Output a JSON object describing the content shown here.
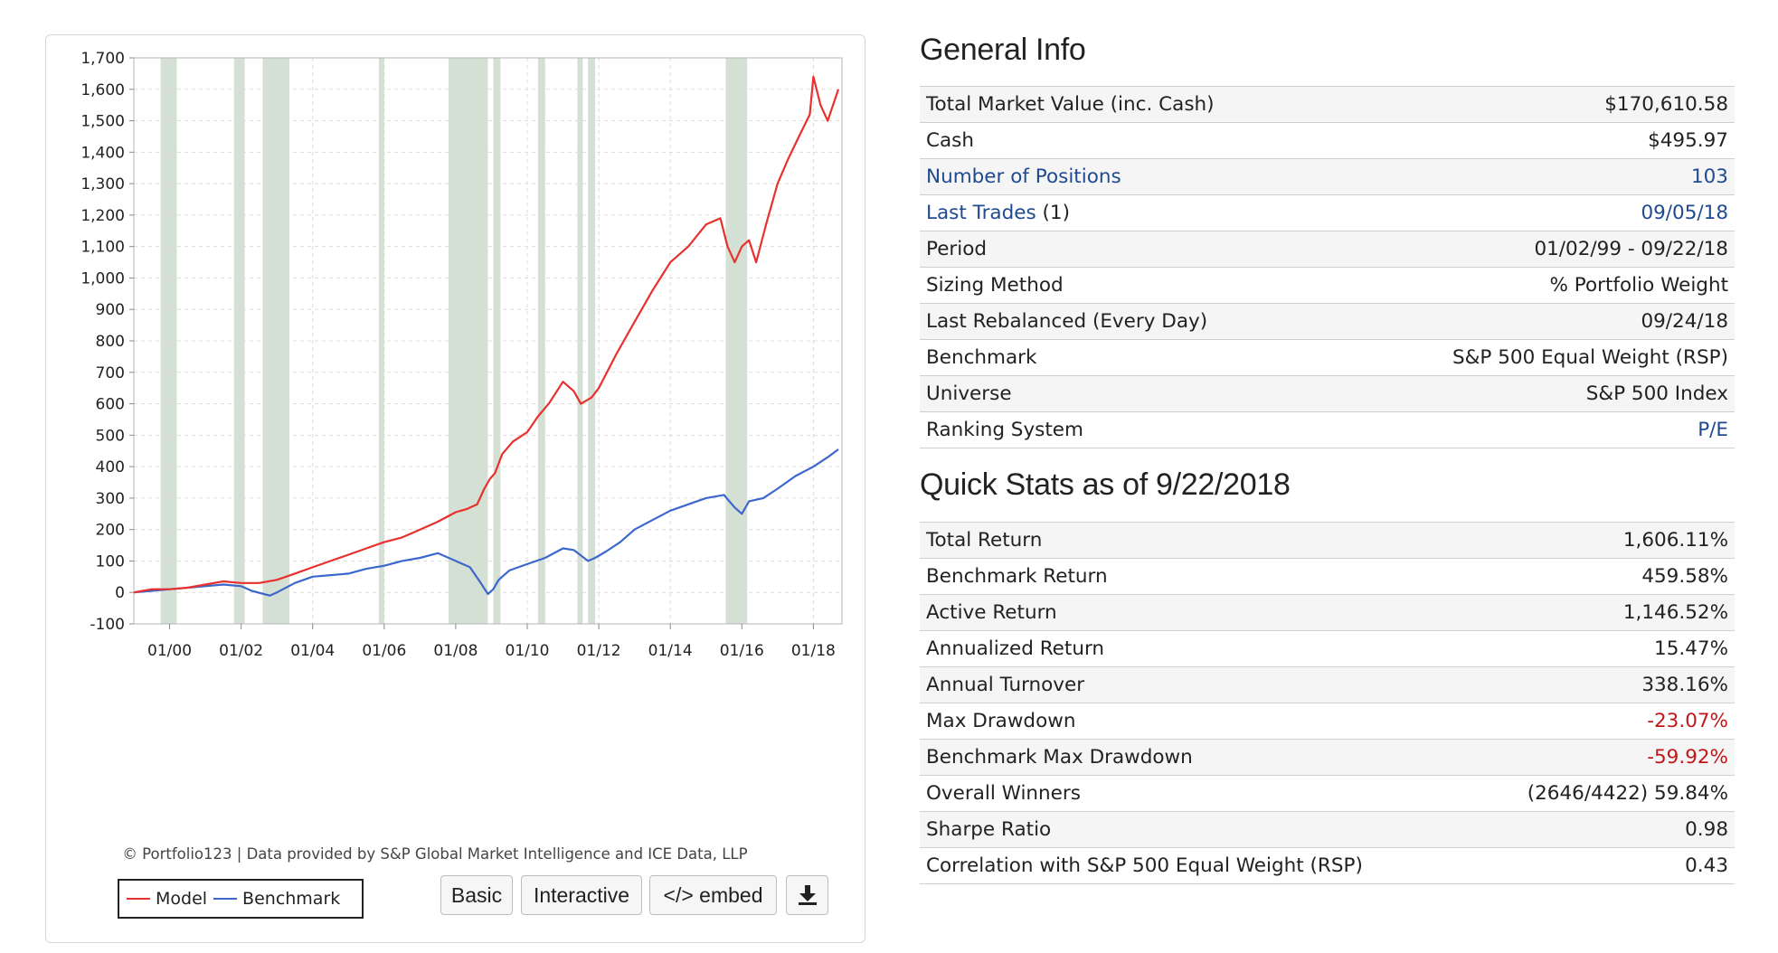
{
  "chart": {
    "credit": "© Portfolio123 | Data provided by S&P Global Market Intelligence and ICE Data, LLP",
    "buttons": {
      "basic": "Basic",
      "interactive": "Interactive",
      "embed": "</> embed"
    },
    "colors": {
      "model": "#e8312f",
      "benchmark": "#3c67cc",
      "recession": "#d4e0d4",
      "grid": "#dcdcdc"
    },
    "icons": {
      "download": "download-icon"
    }
  },
  "chart_data": {
    "type": "line",
    "title": "",
    "xlabel": "",
    "ylabel": "",
    "ylim": [
      -100,
      1700
    ],
    "xlim": [
      1999.0,
      2018.8
    ],
    "grid": true,
    "legend_position": "bottom-left",
    "yticks": [
      -100,
      0,
      100,
      200,
      300,
      400,
      500,
      600,
      700,
      800,
      900,
      1000,
      1100,
      1200,
      1300,
      1400,
      1500,
      1600,
      1700
    ],
    "ytick_labels": [
      "-100",
      "0",
      "100",
      "200",
      "300",
      "400",
      "500",
      "600",
      "700",
      "800",
      "900",
      "1,000",
      "1,100",
      "1,200",
      "1,300",
      "1,400",
      "1,500",
      "1,600",
      "1,700"
    ],
    "xticks": [
      2000,
      2002,
      2004,
      2006,
      2008,
      2010,
      2012,
      2014,
      2016,
      2018
    ],
    "xtick_labels": [
      "01/00",
      "01/02",
      "01/04",
      "01/06",
      "01/08",
      "01/10",
      "01/12",
      "01/14",
      "01/16",
      "01/18"
    ],
    "shaded_periods": [
      [
        1999.75,
        2000.2
      ],
      [
        2001.8,
        2002.1
      ],
      [
        2002.6,
        2003.35
      ],
      [
        2005.85,
        2006.0
      ],
      [
        2007.8,
        2008.9
      ],
      [
        2009.05,
        2009.25
      ],
      [
        2010.3,
        2010.5
      ],
      [
        2011.4,
        2011.55
      ],
      [
        2011.7,
        2011.9
      ],
      [
        2015.55,
        2016.15
      ]
    ],
    "series": [
      {
        "name": "Model",
        "x": [
          1999.0,
          1999.5,
          2000.0,
          2000.5,
          2001.0,
          2001.5,
          2002.0,
          2002.5,
          2003.0,
          2003.5,
          2004.0,
          2004.5,
          2005.0,
          2005.5,
          2006.0,
          2006.5,
          2007.0,
          2007.5,
          2008.0,
          2008.3,
          2008.6,
          2008.8,
          2008.95,
          2009.1,
          2009.3,
          2009.6,
          2010.0,
          2010.3,
          2010.6,
          2011.0,
          2011.3,
          2011.5,
          2011.8,
          2012.0,
          2012.5,
          2013.0,
          2013.5,
          2014.0,
          2014.5,
          2015.0,
          2015.4,
          2015.6,
          2015.8,
          2016.0,
          2016.2,
          2016.4,
          2016.7,
          2017.0,
          2017.3,
          2017.6,
          2017.9,
          2018.0,
          2018.2,
          2018.4,
          2018.7
        ],
        "values": [
          0,
          10,
          10,
          15,
          25,
          35,
          30,
          30,
          40,
          60,
          80,
          100,
          120,
          140,
          160,
          175,
          200,
          225,
          255,
          265,
          280,
          330,
          360,
          380,
          440,
          480,
          510,
          560,
          600,
          670,
          640,
          600,
          620,
          650,
          760,
          860,
          960,
          1050,
          1100,
          1170,
          1190,
          1100,
          1050,
          1100,
          1120,
          1050,
          1180,
          1300,
          1380,
          1450,
          1520,
          1640,
          1550,
          1500,
          1600
        ]
      },
      {
        "name": "Benchmark",
        "x": [
          1999.0,
          1999.5,
          2000.0,
          2000.5,
          2001.0,
          2001.5,
          2002.0,
          2002.3,
          2002.8,
          2003.0,
          2003.5,
          2004.0,
          2004.5,
          2005.0,
          2005.5,
          2006.0,
          2006.5,
          2007.0,
          2007.5,
          2008.0,
          2008.4,
          2008.7,
          2008.9,
          2009.05,
          2009.2,
          2009.5,
          2010.0,
          2010.5,
          2011.0,
          2011.3,
          2011.7,
          2011.9,
          2012.2,
          2012.6,
          2013.0,
          2013.5,
          2014.0,
          2014.5,
          2015.0,
          2015.5,
          2015.8,
          2016.0,
          2016.2,
          2016.6,
          2017.0,
          2017.5,
          2018.0,
          2018.4,
          2018.7
        ],
        "values": [
          0,
          5,
          10,
          15,
          20,
          25,
          20,
          5,
          -10,
          0,
          30,
          50,
          55,
          60,
          75,
          85,
          100,
          110,
          125,
          100,
          80,
          30,
          -5,
          10,
          40,
          70,
          90,
          110,
          140,
          135,
          100,
          110,
          130,
          160,
          200,
          230,
          260,
          280,
          300,
          310,
          270,
          250,
          290,
          300,
          330,
          370,
          400,
          430,
          455
        ]
      }
    ]
  },
  "general_info": {
    "title": "General Info",
    "rows": [
      {
        "label": "Total Market Value (inc. Cash)",
        "value": "$170,610.58"
      },
      {
        "label": "Cash",
        "value": "$495.97"
      },
      {
        "label": "Number of Positions",
        "value": "103"
      },
      {
        "label": "Last Trades",
        "label_suffix": " (1)",
        "value": "09/05/18"
      },
      {
        "label": "Period",
        "value": "01/02/99 - 09/22/18"
      },
      {
        "label": "Sizing Method",
        "value": "% Portfolio Weight"
      },
      {
        "label": "Last Rebalanced (Every Day)",
        "value": "09/24/18"
      },
      {
        "label": "Benchmark",
        "value": "S&P 500 Equal Weight (RSP)"
      },
      {
        "label": "Universe",
        "value": "S&P 500 Index"
      },
      {
        "label": "Ranking System",
        "value": "P/E"
      }
    ]
  },
  "quick_stats": {
    "title": "Quick Stats as of 9/22/2018",
    "rows": [
      {
        "label": "Total Return",
        "value": "1,606.11%"
      },
      {
        "label": "Benchmark Return",
        "value": "459.58%"
      },
      {
        "label": "Active Return",
        "value": "1,146.52%"
      },
      {
        "label": "Annualized Return",
        "value": "15.47%"
      },
      {
        "label": "Annual Turnover",
        "value": "338.16%"
      },
      {
        "label": "Max Drawdown",
        "value": "-23.07%"
      },
      {
        "label": "Benchmark Max Drawdown",
        "value": "-59.92%"
      },
      {
        "label": "Overall Winners",
        "value": "(2646/4422) 59.84%"
      },
      {
        "label": "Sharpe Ratio",
        "value": "0.98"
      },
      {
        "label": "Correlation with S&P 500 Equal Weight (RSP)",
        "value": "0.43"
      }
    ]
  },
  "link_color": "#1f4a8f",
  "negative_color": "#c0171a"
}
